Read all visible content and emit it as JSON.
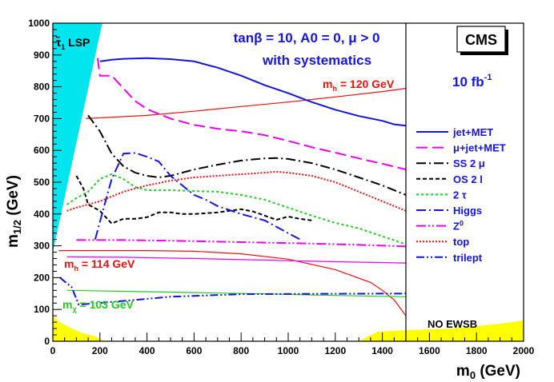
{
  "chart_data": {
    "type": "line",
    "title": "tanβ = 10, A0 = 0, μ > 0",
    "subtitle": "with systematics",
    "experiment_label": "CMS",
    "luminosity_base": "10 fb",
    "luminosity_exp": "-1",
    "xlabel_base": "m",
    "xlabel_sub": "0",
    "xlabel_unit": " (GeV)",
    "ylabel_base": "m",
    "ylabel_sub": "1/2",
    "ylabel_unit": " (GeV)",
    "xlim": [
      0,
      2000
    ],
    "ylim": [
      0,
      1000
    ],
    "x_ticks": [
      0,
      200,
      400,
      600,
      800,
      1000,
      1200,
      1400,
      1600,
      1800,
      2000
    ],
    "y_ticks": [
      0,
      100,
      200,
      300,
      400,
      500,
      600,
      700,
      800,
      900,
      1000
    ],
    "divider_x": 1500,
    "colors": {
      "lsp_region": "#00e5ee",
      "ewsb_region": "#ffff00",
      "red": "#ee1111",
      "green": "#22cc22",
      "blue_text": "#1515dd"
    },
    "annotations": {
      "stau_lsp_glyph": "τ̃",
      "stau_lsp_sub": "1",
      "stau_lsp_text": " LSP",
      "mh120_base": "m",
      "mh120_sub": "h",
      "mh120_text": " = 120 GeV",
      "mh114_base": "m",
      "mh114_sub": "h",
      "mh114_text": " = 114 GeV",
      "mchi_base": "m",
      "mchi_sub": "χ",
      "mchi_text": " = 103 GeV",
      "no_ewsb": "NO EWSB"
    },
    "series": [
      {
        "name": "jet+MET",
        "color": "#1515dd",
        "dash": "",
        "width": 2,
        "x": [
          200,
          250,
          300,
          400,
          500,
          600,
          700,
          800,
          900,
          1000,
          1100,
          1200,
          1300,
          1400,
          1450,
          1500
        ],
        "y": [
          880,
          885,
          888,
          890,
          887,
          880,
          860,
          835,
          805,
          780,
          752,
          728,
          708,
          693,
          682,
          678
        ]
      },
      {
        "name": "μ+jet+MET",
        "color": "#ee00ee",
        "dash": "14 6",
        "width": 2,
        "x": [
          190,
          200,
          250,
          300,
          350,
          400,
          500,
          600,
          700,
          800,
          900,
          1000,
          1100,
          1200,
          1300,
          1400,
          1500
        ],
        "y": [
          890,
          835,
          835,
          795,
          755,
          730,
          700,
          680,
          668,
          660,
          648,
          630,
          610,
          593,
          575,
          558,
          540
        ]
      },
      {
        "name": "SS 2 μ",
        "color": "#000000",
        "dash": "12 4 2 4",
        "width": 2,
        "x": [
          150,
          200,
          250,
          300,
          350,
          400,
          450,
          500,
          600,
          700,
          800,
          900,
          950,
          1000,
          1100,
          1200,
          1300,
          1400,
          1500
        ],
        "y": [
          710,
          660,
          590,
          550,
          530,
          520,
          515,
          520,
          540,
          555,
          568,
          575,
          576,
          573,
          560,
          540,
          515,
          490,
          460
        ]
      },
      {
        "name": "OS 2 l",
        "color": "#000000",
        "dash": "5 3",
        "width": 2,
        "x": [
          100,
          130,
          150,
          200,
          250,
          300,
          350,
          400,
          450,
          500,
          550,
          600,
          700,
          750,
          800,
          850,
          900,
          950,
          1000,
          1050,
          1100
        ],
        "y": [
          520,
          480,
          430,
          410,
          370,
          385,
          385,
          390,
          405,
          405,
          400,
          400,
          405,
          410,
          415,
          408,
          395,
          382,
          392,
          385,
          380
        ]
      },
      {
        "name": "2 τ",
        "color": "#22cc22",
        "dash": "3 3",
        "width": 2,
        "x": [
          60,
          100,
          150,
          200,
          250,
          300,
          350,
          400,
          500,
          600,
          700,
          800,
          900,
          1000,
          1100,
          1200,
          1300,
          1400,
          1500
        ],
        "y": [
          430,
          450,
          470,
          510,
          525,
          510,
          485,
          475,
          475,
          472,
          470,
          460,
          445,
          420,
          395,
          372,
          355,
          330,
          305
        ]
      },
      {
        "name": "Higgs",
        "color": "#1515dd",
        "dash": "12 4 2 4",
        "width": 2,
        "x": [
          180,
          220,
          250,
          300,
          350,
          400,
          450,
          500,
          550,
          600,
          650,
          700,
          800,
          900,
          1000,
          1050
        ],
        "y": [
          320,
          430,
          510,
          590,
          592,
          580,
          565,
          520,
          490,
          460,
          445,
          425,
          400,
          380,
          340,
          320
        ]
      },
      {
        "name": "Z0",
        "color": "#ee00ee",
        "dash": "12 3 2 3 2 3",
        "width": 2,
        "x": [
          100,
          300,
          500,
          700,
          900,
          1100,
          1300,
          1500
        ],
        "y": [
          318,
          318,
          316,
          313,
          310,
          307,
          303,
          298
        ]
      },
      {
        "name": "top",
        "color": "#ee1111",
        "dash": "2 2",
        "width": 2,
        "x": [
          60,
          100,
          200,
          300,
          400,
          500,
          600,
          700,
          800,
          900,
          950,
          1000,
          1100,
          1200,
          1300,
          1400,
          1500
        ],
        "y": [
          410,
          420,
          440,
          470,
          490,
          505,
          515,
          520,
          525,
          530,
          533,
          530,
          520,
          500,
          470,
          440,
          410
        ]
      },
      {
        "name": "trilept",
        "color": "#1515dd",
        "dash": "10 3 2 3 2 3",
        "width": 2,
        "x": [
          30,
          80,
          110,
          350,
          500,
          800,
          1100,
          1500
        ],
        "y": [
          200,
          170,
          115,
          130,
          140,
          148,
          149,
          150
        ]
      }
    ],
    "guide_lines": [
      {
        "name": "mh-120-line",
        "color": "#ee1111",
        "x": [
          140,
          400,
          600,
          800,
          1000,
          1200,
          1400,
          1500
        ],
        "y": [
          700,
          710,
          723,
          738,
          752,
          768,
          785,
          795
        ]
      },
      {
        "name": "mh-114-line",
        "color": "#ee1111",
        "x": [
          25,
          200,
          400,
          600,
          800,
          1000,
          1200,
          1350,
          1400,
          1450,
          1500
        ],
        "y": [
          285,
          285,
          285,
          283,
          275,
          258,
          225,
          185,
          160,
          130,
          80
        ]
      },
      {
        "name": "mchi-103-line",
        "color": "#22cc22",
        "x": [
          60,
          300,
          600,
          900,
          1200,
          1500
        ],
        "y": [
          160,
          157,
          153,
          149,
          144,
          140
        ]
      },
      {
        "name": "magenta-thin-line",
        "color": "#ee00ee",
        "x": [
          60,
          300,
          600,
          900,
          1200,
          1500
        ],
        "y": [
          265,
          264,
          260,
          255,
          250,
          246
        ]
      }
    ],
    "lsp_region": {
      "x": [
        0,
        210,
        0
      ],
      "y": [
        1000,
        1000,
        280
      ]
    },
    "ewsb_regions": [
      {
        "x": [
          0,
          0,
          30,
          80,
          130,
          180,
          200,
          220,
          0
        ],
        "y": [
          0,
          80,
          60,
          40,
          25,
          15,
          8,
          0,
          0
        ]
      },
      {
        "x": [
          1300,
          1380,
          1500,
          1700,
          1900,
          2000,
          2000,
          1300
        ],
        "y": [
          0,
          30,
          35,
          40,
          55,
          65,
          0,
          0
        ]
      }
    ]
  }
}
